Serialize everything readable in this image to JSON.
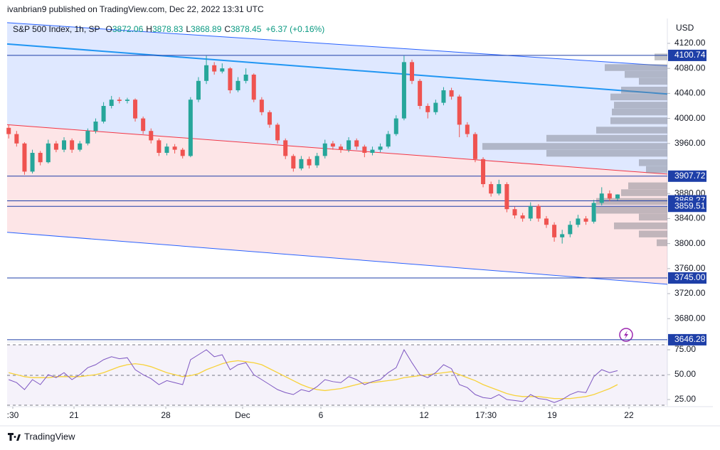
{
  "header": {
    "publisher": "ivanbrian9 published on TradingView.com, Dec 22, 2022 13:31 UTC"
  },
  "footer": {
    "brand": "TradingView"
  },
  "chart_data": {
    "type": "candlestick",
    "title": "S&P 500 Index, 1h, SP",
    "legend": {
      "o": "O",
      "h": "H",
      "l": "L",
      "c": "C",
      "change": "+6.37 (+0.16%)"
    },
    "currency": "USD",
    "up_color": "#26a69a",
    "down_color": "#ef5350",
    "open": [
      3985,
      3975,
      3960,
      3915,
      3945,
      3930,
      3960,
      3950,
      3965,
      3950,
      3960,
      3980,
      3995,
      4020,
      4030,
      4028,
      4030,
      4000,
      3980,
      3965,
      3945,
      3955,
      3950,
      3940,
      4030,
      4060,
      4085,
      4075,
      4080,
      4045,
      4060,
      4070,
      4030,
      4010,
      3990,
      3965,
      3940,
      3920,
      3935,
      3925,
      3940,
      3960,
      3955,
      3950,
      3965,
      3955,
      3945,
      3950,
      3955,
      3975,
      4000,
      4090,
      4060,
      4020,
      4010,
      4025,
      4045,
      4035,
      3990,
      3975,
      3935,
      3895,
      3880,
      3895,
      3855,
      3845,
      3840,
      3860,
      3840,
      3830,
      3810,
      3815,
      3830,
      3840,
      3835,
      3865,
      3880,
      3872.06
    ],
    "high": [
      3990,
      3980,
      3962,
      3950,
      3948,
      3966,
      3964,
      3970,
      3968,
      3964,
      3984,
      4000,
      4026,
      4036,
      4034,
      4033,
      4032,
      4003,
      3984,
      3968,
      3960,
      3959,
      3953,
      4034,
      4066,
      4100,
      4090,
      4088,
      4082,
      4066,
      4080,
      4072,
      4034,
      4013,
      3993,
      3968,
      3943,
      3940,
      3939,
      3945,
      3966,
      3964,
      3959,
      3970,
      3968,
      3958,
      3955,
      3960,
      3980,
      4005,
      4100,
      4094,
      4063,
      4024,
      4030,
      4050,
      4049,
      4038,
      3994,
      3978,
      3938,
      3899,
      3902,
      3898,
      3859,
      3849,
      3866,
      3863,
      3844,
      3834,
      3822,
      3836,
      3846,
      3844,
      3870,
      3890,
      3885,
      3878.83
    ],
    "low": [
      3968,
      3955,
      3910,
      3912,
      3925,
      3928,
      3946,
      3946,
      3945,
      3947,
      3957,
      3976,
      3992,
      4016,
      4024,
      4024,
      3995,
      3975,
      3960,
      3940,
      3941,
      3944,
      3936,
      3938,
      4026,
      4055,
      4070,
      4072,
      4040,
      4042,
      4056,
      4026,
      4005,
      3985,
      3960,
      3935,
      3915,
      3917,
      3920,
      3921,
      3936,
      3950,
      3945,
      3946,
      3950,
      3938,
      3941,
      3946,
      3952,
      3972,
      3997,
      4055,
      4015,
      4000,
      4006,
      4021,
      4030,
      3970,
      3970,
      3930,
      3890,
      3875,
      3877,
      3850,
      3840,
      3835,
      3836,
      3835,
      3825,
      3803,
      3800,
      3810,
      3826,
      3830,
      3832,
      3861,
      3868,
      3868.89
    ],
    "close": [
      3975,
      3960,
      3915,
      3945,
      3930,
      3960,
      3950,
      3965,
      3950,
      3960,
      3980,
      3995,
      4020,
      4030,
      4028,
      4030,
      4000,
      3980,
      3965,
      3945,
      3955,
      3950,
      3940,
      4030,
      4060,
      4085,
      4075,
      4080,
      4045,
      4060,
      4070,
      4030,
      4010,
      3990,
      3965,
      3940,
      3920,
      3935,
      3925,
      3940,
      3960,
      3955,
      3950,
      3965,
      3955,
      3945,
      3950,
      3955,
      3975,
      4000,
      4090,
      4060,
      4020,
      4010,
      4025,
      4045,
      4035,
      3990,
      3975,
      3935,
      3895,
      3880,
      3895,
      3855,
      3845,
      3840,
      3860,
      3840,
      3830,
      3810,
      3815,
      3830,
      3840,
      3835,
      3865,
      3880,
      3872.06,
      3878.45
    ],
    "xlim": [
      -0.2,
      83.3
    ],
    "xticks": [
      {
        "value": 0.52,
        "label": ":30"
      },
      {
        "value": 8.26,
        "label": "21"
      },
      {
        "value": 19.87,
        "label": "28"
      },
      {
        "value": 29.58,
        "label": "Dec"
      },
      {
        "value": 39.48,
        "label": "6"
      },
      {
        "value": 52.53,
        "label": "12"
      },
      {
        "value": 60.36,
        "label": "17:30"
      },
      {
        "value": 68.72,
        "label": "19"
      },
      {
        "value": 78.44,
        "label": "22"
      }
    ],
    "ylim": [
      3643.9,
      4155.2
    ],
    "yticks": [
      {
        "value": 4120,
        "label": "4120.00"
      },
      {
        "value": 4080,
        "label": "4080.00"
      },
      {
        "value": 4040,
        "label": "4040.00"
      },
      {
        "value": 4000,
        "label": "4000.00"
      },
      {
        "value": 3960,
        "label": "3960.00"
      },
      {
        "value": 3880,
        "label": "3880.00"
      },
      {
        "value": 3840,
        "label": "3840.00"
      },
      {
        "value": 3800,
        "label": "3800.00"
      },
      {
        "value": 3760,
        "label": "3760.00"
      },
      {
        "value": 3720,
        "label": "3720.00"
      },
      {
        "value": 3680,
        "label": "3680.00"
      }
    ],
    "channel": {
      "upper": [
        4153,
        4084
      ],
      "midline": [
        4119,
        4039
      ],
      "middle": [
        3990,
        3911
      ],
      "lower": [
        3818,
        3735
      ]
    },
    "levels": {
      "values": [
        4100.74,
        3907.72,
        3868.27,
        3859.51,
        3745,
        3646.28
      ],
      "value_labels": [
        "4100.74",
        "3907.72",
        "3868.27",
        "3859.51",
        "3745.00",
        "3646.28"
      ]
    },
    "volume_profile": {
      "prices": [
        4098,
        4081,
        4070,
        4059,
        4045,
        4034,
        4021,
        4010,
        3996,
        3981,
        3968,
        3955,
        3944,
        3929,
        3918,
        3892,
        3881,
        3867,
        3853,
        3842,
        3828,
        3815,
        3801
      ],
      "volumes": [
        18,
        88,
        60,
        40,
        65,
        80,
        75,
        78,
        80,
        100,
        170,
        260,
        170,
        40,
        30,
        55,
        65,
        100,
        100,
        40,
        75,
        40,
        15
      ]
    },
    "rsi": {
      "color": "#7e57c2",
      "ma_color": "#f7d23a",
      "ylim": [
        19.3,
        80
      ],
      "yticks": [
        {
          "value": 75,
          "label": "75.00"
        },
        {
          "value": 50,
          "label": "50.00"
        },
        {
          "value": 25,
          "label": "25.00"
        }
      ],
      "values": [
        45,
        42,
        35,
        45,
        40,
        50,
        47,
        52,
        45,
        50,
        57,
        60,
        65,
        68,
        66,
        67,
        55,
        50,
        46,
        40,
        44,
        42,
        40,
        65,
        70,
        75,
        68,
        70,
        55,
        60,
        62,
        50,
        45,
        40,
        35,
        32,
        30,
        35,
        33,
        38,
        45,
        43,
        42,
        48,
        45,
        40,
        43,
        45,
        52,
        57,
        75,
        62,
        50,
        47,
        52,
        60,
        56,
        40,
        37,
        30,
        27,
        26,
        30,
        25,
        24,
        23,
        30,
        26,
        25,
        22,
        25,
        30,
        33,
        32,
        48,
        55,
        52,
        54
      ],
      "ma": [
        52,
        50,
        48,
        47,
        47,
        47,
        48,
        48,
        48,
        48,
        49,
        50,
        52,
        55,
        58,
        60,
        61,
        60,
        58,
        55,
        52,
        50,
        48,
        49,
        51,
        55,
        58,
        61,
        63,
        64,
        63,
        62,
        60,
        56,
        52,
        48,
        44,
        40,
        37,
        35,
        34,
        35,
        36,
        38,
        40,
        42,
        42,
        43,
        44,
        45,
        47,
        48,
        49,
        50,
        51,
        52,
        53,
        50,
        47,
        44,
        40,
        37,
        34,
        31,
        29,
        28,
        28,
        28,
        27,
        26,
        26,
        26,
        27,
        28,
        30,
        33,
        36,
        40
      ]
    }
  }
}
